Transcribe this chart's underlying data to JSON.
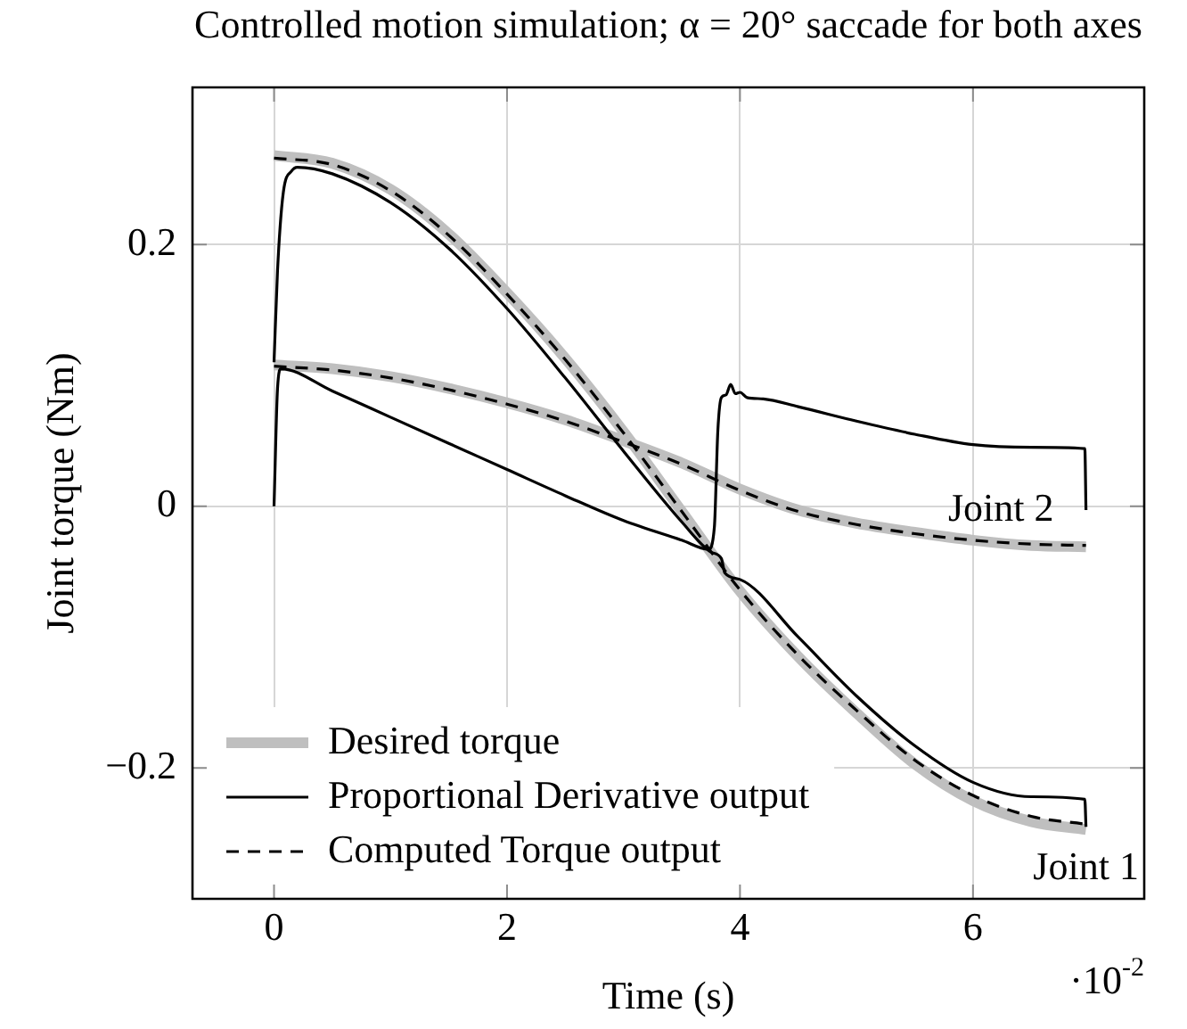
{
  "chart_data": {
    "type": "line",
    "title": "Controlled motion simulation; α = 20° saccade for both axes",
    "xlabel": "Time (s)",
    "ylabel": "Joint torque (Nm)",
    "xlim": [
      -0.7,
      7.47
    ],
    "xticks": [
      0,
      2,
      4,
      6
    ],
    "ylim": [
      -0.3,
      0.32
    ],
    "yticks": [
      {
        "value": -0.2,
        "label": "−0.2"
      },
      0,
      0.2
    ],
    "grid": true,
    "legend": "bottom left",
    "marker": "none",
    "series": [
      {
        "name": "Desired torque",
        "color": "#bfbfbf",
        "line_style": "solid",
        "x": [
          0,
          0.5,
          1,
          1.5,
          2,
          2.5,
          3,
          3.5,
          4,
          4.5,
          5,
          5.5,
          6,
          6.5,
          6.97
        ],
        "values": [
          0.268,
          0.262,
          0.242,
          0.208,
          0.163,
          0.113,
          0.057,
          -0.004,
          -0.065,
          -0.115,
          -0.158,
          -0.197,
          -0.225,
          -0.241,
          -0.247
        ]
      },
      {
        "name": "Proportional Derivative output",
        "color": "#000000",
        "line_style": "solid",
        "x": [
          0,
          0.03,
          0.08,
          0.15,
          0.2,
          0.5,
          1,
          1.5,
          2,
          2.5,
          3,
          3.5,
          3.75,
          3.84,
          3.87,
          4,
          4.5,
          5,
          5.5,
          6,
          6.5,
          6.96,
          6.97
        ],
        "values": [
          0.11,
          0.18,
          0.24,
          0.256,
          0.259,
          0.254,
          0.232,
          0.197,
          0.151,
          0.098,
          0.042,
          -0.012,
          -0.035,
          -0.04,
          -0.051,
          -0.056,
          -0.1,
          -0.145,
          -0.183,
          -0.211,
          -0.222,
          -0.224,
          -0.245
        ]
      },
      {
        "name": "Computed Torque output",
        "color": "#000000",
        "line_style": "dashed",
        "x": [
          0,
          0.5,
          1,
          1.5,
          2,
          2.5,
          3,
          3.5,
          4,
          4.5,
          5,
          5.5,
          6,
          6.5,
          6.97
        ],
        "values": [
          0.266,
          0.261,
          0.241,
          0.207,
          0.162,
          0.112,
          0.056,
          -0.004,
          -0.064,
          -0.114,
          -0.156,
          -0.194,
          -0.221,
          -0.237,
          -0.243
        ]
      },
      {
        "color": "#bfbfbf",
        "line_style": "solid",
        "x": [
          0,
          0.5,
          1,
          1.5,
          2,
          2.5,
          3,
          3.5,
          4,
          4.5,
          5,
          5.5,
          6,
          6.5,
          6.97
        ],
        "values": [
          0.108,
          0.105,
          0.099,
          0.09,
          0.079,
          0.066,
          0.05,
          0.033,
          0.013,
          -0.003,
          -0.013,
          -0.02,
          -0.026,
          -0.03,
          -0.031
        ]
      },
      {
        "color": "#000000",
        "line_style": "solid",
        "x": [
          0,
          0.03,
          0.06,
          0.5,
          1,
          1.5,
          2,
          2.5,
          3,
          3.5,
          3.73,
          3.78,
          3.81,
          3.84,
          3.88,
          3.92,
          3.96,
          4.0,
          4.06,
          4.2,
          4.5,
          5,
          5.5,
          6,
          6.5,
          6.96,
          6.97
        ],
        "values": [
          0,
          0.09,
          0.105,
          0.088,
          0.068,
          0.048,
          0.028,
          0.008,
          -0.011,
          -0.026,
          -0.033,
          -0.016,
          0.058,
          0.083,
          0.085,
          0.093,
          0.086,
          0.087,
          0.083,
          0.082,
          0.076,
          0.065,
          0.055,
          0.047,
          0.045,
          0.044,
          -0.003
        ]
      },
      {
        "color": "#000000",
        "line_style": "dashed",
        "x": [
          0,
          0.5,
          1,
          1.5,
          2,
          2.5,
          3,
          3.5,
          4,
          4.5,
          5,
          5.5,
          6,
          6.5,
          6.97
        ],
        "values": [
          0.107,
          0.104,
          0.098,
          0.089,
          0.078,
          0.065,
          0.049,
          0.032,
          0.012,
          -0.004,
          -0.014,
          -0.021,
          -0.026,
          -0.029,
          -0.03
        ]
      }
    ],
    "annotations": [
      {
        "text": "Joint 2",
        "x": 6.24,
        "y": -0.028
      },
      {
        "text": "Joint 1",
        "x": 6.97,
        "y": -0.247
      },
      "·10$^{-2}$"
    ]
  }
}
